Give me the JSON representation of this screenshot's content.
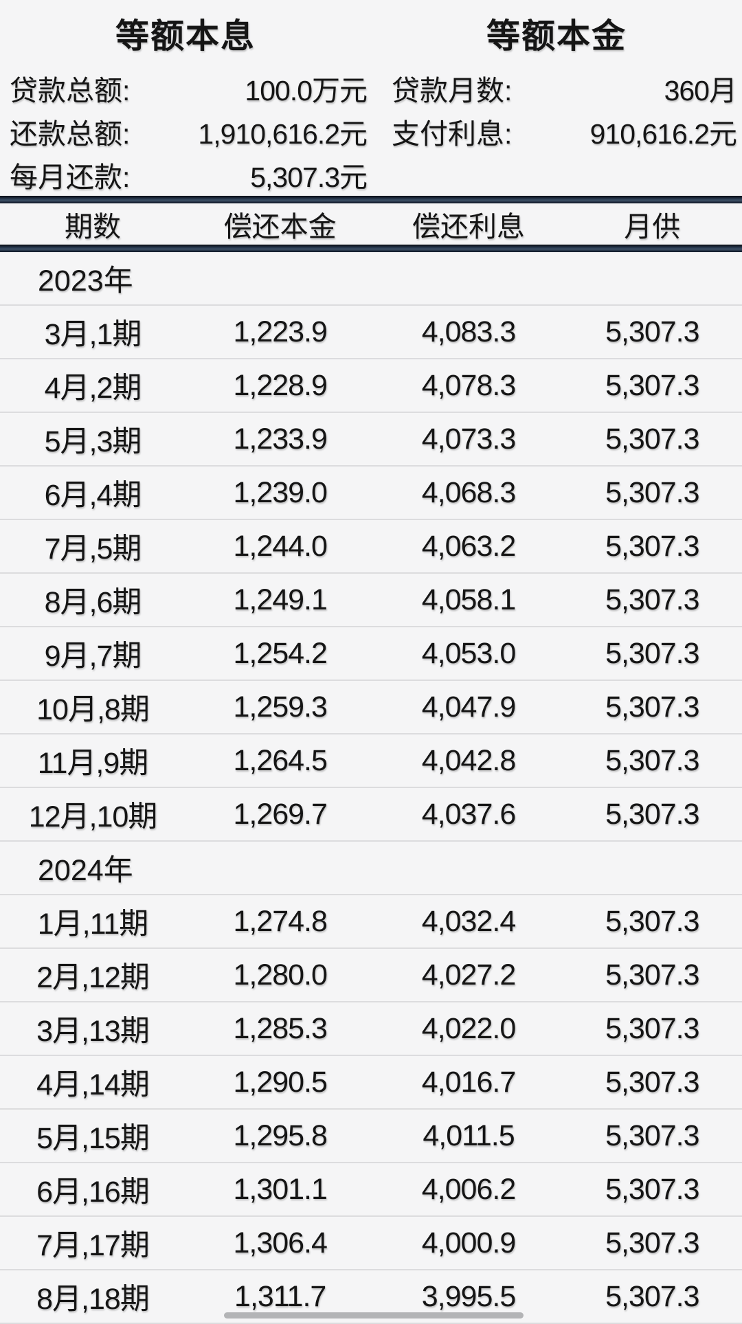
{
  "tabs": [
    {
      "label": "等额本息",
      "active": true
    },
    {
      "label": "等额本金",
      "active": false
    }
  ],
  "summary": {
    "left": [
      {
        "label": "贷款总额:",
        "value": "100.0万元"
      },
      {
        "label": "还款总额:",
        "value": "1,910,616.2元"
      },
      {
        "label": "每月还款:",
        "value": "5,307.3元"
      }
    ],
    "right": [
      {
        "label": "贷款月数:",
        "value": "360月"
      },
      {
        "label": "支付利息:",
        "value": "910,616.2元"
      }
    ]
  },
  "table": {
    "headers": [
      "期数",
      "偿还本金",
      "偿还利息",
      "月供"
    ],
    "groups": [
      {
        "year": "2023年",
        "rows": [
          [
            "3月,1期",
            "1,223.9",
            "4,083.3",
            "5,307.3"
          ],
          [
            "4月,2期",
            "1,228.9",
            "4,078.3",
            "5,307.3"
          ],
          [
            "5月,3期",
            "1,233.9",
            "4,073.3",
            "5,307.3"
          ],
          [
            "6月,4期",
            "1,239.0",
            "4,068.3",
            "5,307.3"
          ],
          [
            "7月,5期",
            "1,244.0",
            "4,063.2",
            "5,307.3"
          ],
          [
            "8月,6期",
            "1,249.1",
            "4,058.1",
            "5,307.3"
          ],
          [
            "9月,7期",
            "1,254.2",
            "4,053.0",
            "5,307.3"
          ],
          [
            "10月,8期",
            "1,259.3",
            "4,047.9",
            "5,307.3"
          ],
          [
            "11月,9期",
            "1,264.5",
            "4,042.8",
            "5,307.3"
          ],
          [
            "12月,10期",
            "1,269.7",
            "4,037.6",
            "5,307.3"
          ]
        ]
      },
      {
        "year": "2024年",
        "rows": [
          [
            "1月,11期",
            "1,274.8",
            "4,032.4",
            "5,307.3"
          ],
          [
            "2月,12期",
            "1,280.0",
            "4,027.2",
            "5,307.3"
          ],
          [
            "3月,13期",
            "1,285.3",
            "4,022.0",
            "5,307.3"
          ],
          [
            "4月,14期",
            "1,290.5",
            "4,016.7",
            "5,307.3"
          ],
          [
            "5月,15期",
            "1,295.8",
            "4,011.5",
            "5,307.3"
          ],
          [
            "6月,16期",
            "1,301.1",
            "4,006.2",
            "5,307.3"
          ],
          [
            "7月,17期",
            "1,306.4",
            "4,000.9",
            "5,307.3"
          ],
          [
            "8月,18期",
            "1,311.7",
            "3,995.5",
            "5,307.3"
          ]
        ]
      }
    ]
  },
  "colors": {
    "background": "#f5f5f6",
    "text": "#151515",
    "divider_bar": "#2c3e55",
    "row_separator": "#dcdcde",
    "scroll_indicator": "#b3b4b6"
  }
}
